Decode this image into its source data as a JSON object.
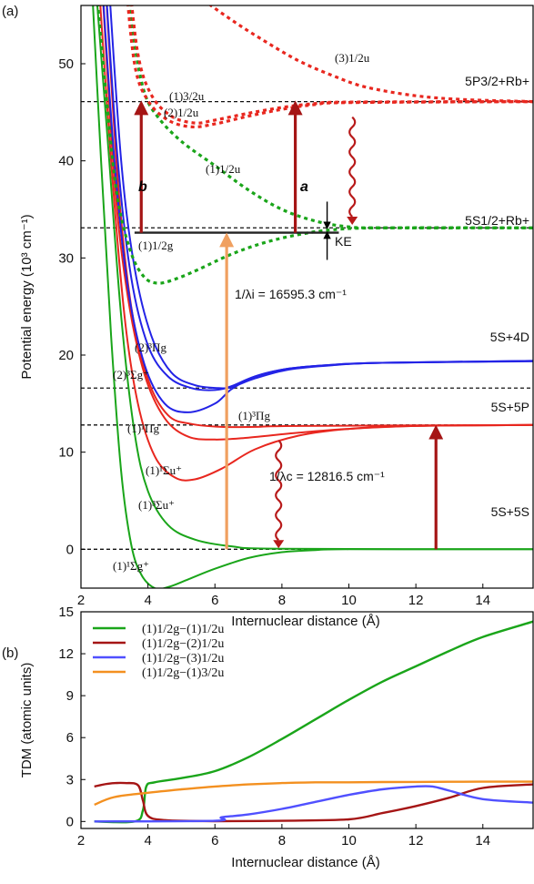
{
  "chart_data": [
    {
      "panel": "(a)",
      "type": "line",
      "xlabel": "Internuclear distance (Å)",
      "ylabel": "Potential energy (10³ cm⁻¹)",
      "xlim": [
        2,
        15.5
      ],
      "ylim": [
        -4,
        56
      ],
      "xticks": [
        2,
        4,
        6,
        8,
        10,
        12,
        14
      ],
      "yticks": [
        0,
        10,
        20,
        30,
        40,
        50
      ],
      "asymptotes": [
        {
          "y": 0,
          "label": "5S+5S"
        },
        {
          "y": 12.8,
          "label": "5S+5P"
        },
        {
          "y": 16.6,
          "label": ""
        },
        {
          "y": 19.4,
          "label": "5S+4D"
        },
        {
          "y": 33.1,
          "label": "5S1/2+Rb+"
        },
        {
          "y": 46.1,
          "label": "5P3/2+Rb+"
        }
      ],
      "curve_labels": [
        "(1)¹Σg⁺",
        "(1)³Σu⁺",
        "(1)¹Σu⁺",
        "(1)¹Πg",
        "(1)³Πg",
        "(2)³Σg⁺",
        "(2)³Πg",
        "(1)1/2g",
        "(1)1/2u",
        "(2)1/2u",
        "(1)3/2u",
        "(3)1/2u"
      ],
      "series": [
        {
          "label": "(1)¹Σg⁺",
          "color": "#1aa51a",
          "dash": false,
          "points": [
            [
              2.3,
              60
            ],
            [
              2.6,
              40
            ],
            [
              2.9,
              22
            ],
            [
              3.2,
              8
            ],
            [
              3.5,
              0.5
            ],
            [
              3.8,
              -2.6
            ],
            [
              4.2,
              -4.0
            ],
            [
              4.6,
              -3.9
            ],
            [
              5.2,
              -3.1
            ],
            [
              6,
              -2.0
            ],
            [
              7,
              -0.9
            ],
            [
              8,
              -0.3
            ],
            [
              9,
              -0.08
            ],
            [
              10,
              0
            ],
            [
              15.5,
              0
            ]
          ]
        },
        {
          "label": "(1)³Σu⁺",
          "color": "#1aa51a",
          "dash": false,
          "points": [
            [
              2.4,
              60
            ],
            [
              2.8,
              42
            ],
            [
              3.2,
              24
            ],
            [
              3.6,
              12
            ],
            [
              4,
              6
            ],
            [
              4.6,
              2.5
            ],
            [
              5.4,
              1
            ],
            [
              6.5,
              0.3
            ],
            [
              8,
              0.05
            ],
            [
              15.5,
              0
            ]
          ]
        },
        {
          "label": "(1)¹Σu⁺",
          "color": "#e8271f",
          "dash": false,
          "points": [
            [
              2.5,
              60
            ],
            [
              2.9,
              40
            ],
            [
              3.3,
              24
            ],
            [
              3.7,
              15
            ],
            [
              4.2,
              9.6
            ],
            [
              4.8,
              7.4
            ],
            [
              5.4,
              7.2
            ],
            [
              6.2,
              8.3
            ],
            [
              7.2,
              10.3
            ],
            [
              8.5,
              11.7
            ],
            [
              10,
              12.4
            ],
            [
              12,
              12.7
            ],
            [
              15.5,
              12.8
            ]
          ]
        },
        {
          "label": "(1)¹Πg",
          "color": "#e8271f",
          "dash": false,
          "points": [
            [
              2.6,
              60
            ],
            [
              3,
              38
            ],
            [
              3.4,
              26
            ],
            [
              3.9,
              18
            ],
            [
              4.5,
              13.5
            ],
            [
              5.2,
              11.6
            ],
            [
              6,
              11.3
            ],
            [
              7,
              11.5
            ],
            [
              8.5,
              12
            ],
            [
              10,
              12.4
            ],
            [
              12,
              12.7
            ],
            [
              15.5,
              12.8
            ]
          ]
        },
        {
          "label": "(1)³Πg",
          "color": "#e8271f",
          "dash": false,
          "points": [
            [
              2.7,
              60
            ],
            [
              3.1,
              38
            ],
            [
              3.5,
              25
            ],
            [
              4,
              17.5
            ],
            [
              4.6,
              13.8
            ],
            [
              5.3,
              12.9
            ],
            [
              6.2,
              12.6
            ],
            [
              7.2,
              12.6
            ],
            [
              8.5,
              12.7
            ],
            [
              15.5,
              12.8
            ]
          ]
        },
        {
          "label": "(2)³Σg⁺",
          "color": "#2323e6",
          "dash": false,
          "points": [
            [
              2.6,
              60
            ],
            [
              3,
              40
            ],
            [
              3.4,
              27
            ],
            [
              3.9,
              19
            ],
            [
              4.5,
              15
            ],
            [
              5.2,
              14.1
            ],
            [
              6,
              15
            ],
            [
              6.5,
              16.5
            ],
            [
              7.2,
              17.8
            ],
            [
              8.2,
              18.6
            ],
            [
              9.5,
              19
            ],
            [
              11,
              19.2
            ],
            [
              15.5,
              19.4
            ]
          ]
        },
        {
          "label": "(2)³Πg",
          "color": "#2323e6",
          "dash": false,
          "points": [
            [
              2.7,
              60
            ],
            [
              3.1,
              40
            ],
            [
              3.5,
              28
            ],
            [
              4,
              21
            ],
            [
              4.6,
              17.8
            ],
            [
              5.3,
              16.6
            ],
            [
              6,
              16.4
            ],
            [
              6.5,
              16.8
            ],
            [
              7.2,
              17.8
            ],
            [
              8.2,
              18.6
            ],
            [
              9.5,
              19
            ],
            [
              11,
              19.2
            ],
            [
              15.5,
              19.4
            ]
          ]
        },
        {
          "label": "(2)³Πg",
          "color": "#2323e6",
          "dash": false,
          "points": [
            [
              2.8,
              60
            ],
            [
              3.2,
              40
            ],
            [
              3.6,
              29
            ],
            [
              4.1,
              22
            ],
            [
              4.7,
              18.2
            ],
            [
              5.4,
              16.9
            ],
            [
              6.1,
              16.6
            ],
            [
              6.5,
              16.7
            ],
            [
              7.2,
              17.6
            ],
            [
              8.2,
              18.5
            ],
            [
              9.5,
              18.95
            ],
            [
              11,
              19.2
            ],
            [
              15.5,
              19.35
            ]
          ]
        },
        {
          "label": "(1)1/2g",
          "color": "#1aa51a",
          "dash": true,
          "points": [
            [
              2.4,
              60
            ],
            [
              2.8,
              45
            ],
            [
              3.1,
              36
            ],
            [
              3.5,
              30.5
            ],
            [
              3.9,
              28
            ],
            [
              4.3,
              27.4
            ],
            [
              4.8,
              27.8
            ],
            [
              5.5,
              28.8
            ],
            [
              6.5,
              30.4
            ],
            [
              7.5,
              31.6
            ],
            [
              8.5,
              32.4
            ],
            [
              9.5,
              32.9
            ],
            [
              11,
              33.1
            ],
            [
              15.5,
              33.1
            ]
          ]
        },
        {
          "label": "(1)1/2u",
          "color": "#1aa51a",
          "dash": true,
          "points": [
            [
              3.3,
              60
            ],
            [
              3.6,
              52
            ],
            [
              3.9,
              47
            ],
            [
              4.3,
              44.5
            ],
            [
              5,
              42
            ],
            [
              6,
              39.5
            ],
            [
              7,
              37
            ],
            [
              8,
              35
            ],
            [
              9,
              33.8
            ],
            [
              10,
              33.2
            ],
            [
              11,
              33.1
            ],
            [
              15.5,
              33.1
            ]
          ]
        },
        {
          "label": "(2)1/2u",
          "color": "#e8271f",
          "dash": true,
          "points": [
            [
              3.3,
              60
            ],
            [
              3.6,
              50
            ],
            [
              4,
              46.2
            ],
            [
              4.6,
              44.2
            ],
            [
              5.3,
              43.5
            ],
            [
              6,
              43.8
            ],
            [
              7,
              44.6
            ],
            [
              8,
              45.3
            ],
            [
              9,
              45.8
            ],
            [
              10,
              46
            ],
            [
              15.5,
              46.1
            ]
          ]
        },
        {
          "label": "(1)3/2u",
          "color": "#e8271f",
          "dash": true,
          "points": [
            [
              3.4,
              60
            ],
            [
              3.7,
              51
            ],
            [
              4.1,
              46.8
            ],
            [
              4.7,
              44.6
            ],
            [
              5.4,
              43.9
            ],
            [
              6,
              44.2
            ],
            [
              7,
              44.9
            ],
            [
              8,
              45.5
            ],
            [
              9,
              45.9
            ],
            [
              10,
              46.05
            ],
            [
              15.5,
              46.1
            ]
          ]
        },
        {
          "label": "(3)1/2u",
          "color": "#e8271f",
          "dash": true,
          "points": [
            [
              4.5,
              60
            ],
            [
              5.5,
              57
            ],
            [
              6.5,
              54.5
            ],
            [
              7.5,
              52.3
            ],
            [
              8.5,
              50.3
            ],
            [
              9.5,
              48.8
            ],
            [
              10.5,
              47.6
            ],
            [
              12,
              46.7
            ],
            [
              13.5,
              46.3
            ],
            [
              15.5,
              46.1
            ]
          ]
        }
      ],
      "annotations": {
        "ke_label": "KE",
        "label_a": "a",
        "label_b": "b",
        "lambda_i": "1/λi = 16595.3 cm⁻¹",
        "lambda_c": "1/λc = 12816.5 cm⁻¹",
        "ion_level_y": 32.6,
        "arrows_up": [
          {
            "x": 3.8,
            "y_from": 32.6,
            "y_to": 46.2,
            "color": "#a51515"
          },
          {
            "x": 8.4,
            "y_from": 32.6,
            "y_to": 46.2,
            "color": "#a51515"
          },
          {
            "x": 6.35,
            "y_from": 0,
            "y_to": 32.6,
            "color": "#f0a060"
          },
          {
            "x": 12.6,
            "y_from": 0,
            "y_to": 12.8,
            "color": "#a51515"
          }
        ],
        "wavy_down": [
          {
            "x": 10.1,
            "y_from": 44.5,
            "y_to": 33.5
          },
          {
            "x": 7.9,
            "y_from": 11.2,
            "y_to": 0.2
          }
        ]
      }
    },
    {
      "panel": "(b)",
      "type": "line",
      "xlabel": "Internuclear distance (Å)",
      "ylabel": "TDM (atomic units)",
      "xlim": [
        2,
        15.5
      ],
      "ylim": [
        -0.5,
        15
      ],
      "xticks": [
        2,
        4,
        6,
        8,
        10,
        12,
        14
      ],
      "yticks": [
        0,
        3,
        6,
        9,
        12,
        15
      ],
      "legend_position": "top-left",
      "series": [
        {
          "name": "(1)1/2g−(1)1/2u",
          "color": "#1aa51a",
          "points": [
            [
              2.4,
              0
            ],
            [
              3.6,
              0
            ],
            [
              3.85,
              0.8
            ],
            [
              3.95,
              2.5
            ],
            [
              4.2,
              2.8
            ],
            [
              5,
              3.1
            ],
            [
              6,
              3.6
            ],
            [
              7,
              4.6
            ],
            [
              8,
              5.9
            ],
            [
              9,
              7.3
            ],
            [
              10,
              8.7
            ],
            [
              11,
              10
            ],
            [
              12,
              11.1
            ],
            [
              13,
              12.2
            ],
            [
              14,
              13.2
            ],
            [
              15.5,
              14.3
            ]
          ]
        },
        {
          "name": "(1)1/2g−(2)1/2u",
          "color": "#a51515",
          "points": [
            [
              2.4,
              2.5
            ],
            [
              2.8,
              2.7
            ],
            [
              3.3,
              2.75
            ],
            [
              3.7,
              2.6
            ],
            [
              3.85,
              1.5
            ],
            [
              4,
              0.4
            ],
            [
              4.5,
              0.1
            ],
            [
              6,
              0.02
            ],
            [
              8,
              0.05
            ],
            [
              10,
              0.15
            ],
            [
              11,
              0.6
            ],
            [
              12,
              1.1
            ],
            [
              13,
              1.7
            ],
            [
              14,
              2.4
            ],
            [
              15.5,
              2.65
            ]
          ]
        },
        {
          "name": "(1)1/2g−(3)1/2u",
          "color": "#5050ff",
          "points": [
            [
              2.4,
              0
            ],
            [
              6,
              0.05
            ],
            [
              6.2,
              0.3
            ],
            [
              7,
              0.5
            ],
            [
              8,
              0.9
            ],
            [
              9,
              1.4
            ],
            [
              10,
              1.9
            ],
            [
              11,
              2.3
            ],
            [
              12,
              2.5
            ],
            [
              12.5,
              2.5
            ],
            [
              13,
              2.2
            ],
            [
              14,
              1.6
            ],
            [
              15.5,
              1.35
            ]
          ]
        },
        {
          "name": "(1)1/2g−(1)3/2u",
          "color": "#f39020",
          "points": [
            [
              2.4,
              1.2
            ],
            [
              3,
              1.75
            ],
            [
              4,
              2.05
            ],
            [
              5,
              2.3
            ],
            [
              6,
              2.5
            ],
            [
              7,
              2.65
            ],
            [
              8,
              2.75
            ],
            [
              9,
              2.8
            ],
            [
              10,
              2.8
            ],
            [
              11,
              2.82
            ],
            [
              12,
              2.83
            ],
            [
              13,
              2.84
            ],
            [
              14,
              2.85
            ],
            [
              15.5,
              2.85
            ]
          ]
        }
      ]
    }
  ]
}
